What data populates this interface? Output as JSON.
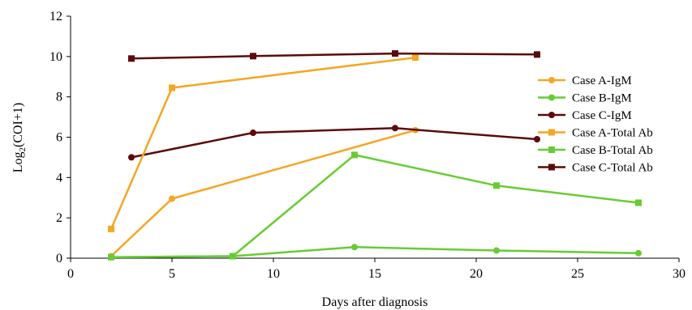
{
  "chart_data": {
    "type": "line",
    "title": "",
    "xlabel": "Days after diagnosis",
    "ylabel_main": "Log",
    "ylabel_sub": "2",
    "ylabel_rest": "(COI+1)",
    "xlim": [
      0,
      30
    ],
    "ylim": [
      0,
      12
    ],
    "xticks": [
      "0",
      "5",
      "10",
      "15",
      "20",
      "25",
      "30"
    ],
    "yticks": [
      "0",
      "2",
      "4",
      "6",
      "8",
      "10",
      "12"
    ],
    "grid": false,
    "legend_position": "right",
    "series": [
      {
        "name": "Case A-IgM",
        "color": "#F5A623",
        "marker": "circle",
        "points": [
          [
            2,
            0.1
          ],
          [
            5,
            2.95
          ],
          [
            17,
            6.35
          ]
        ]
      },
      {
        "name": "Case B-IgM",
        "color": "#66CC33",
        "marker": "circle",
        "points": [
          [
            2,
            0.05
          ],
          [
            8,
            0.1
          ],
          [
            14,
            0.55
          ],
          [
            21,
            0.38
          ],
          [
            28,
            0.25
          ]
        ]
      },
      {
        "name": "Case C-IgM",
        "color": "#5C0A0A",
        "marker": "circle",
        "points": [
          [
            3,
            5.0
          ],
          [
            9,
            6.22
          ],
          [
            16,
            6.45
          ],
          [
            23,
            5.9
          ]
        ]
      },
      {
        "name": "Case A-Total Ab",
        "color": "#F5A623",
        "marker": "square",
        "points": [
          [
            2,
            1.45
          ],
          [
            5,
            8.45
          ],
          [
            17,
            9.95
          ]
        ]
      },
      {
        "name": "Case B-Total Ab",
        "color": "#66CC33",
        "marker": "square",
        "points": [
          [
            2,
            0.05
          ],
          [
            8,
            0.1
          ],
          [
            14,
            5.12
          ],
          [
            21,
            3.6
          ],
          [
            28,
            2.75
          ]
        ]
      },
      {
        "name": "Case C-Total Ab",
        "color": "#5C0A0A",
        "marker": "square",
        "points": [
          [
            3,
            9.9
          ],
          [
            9,
            10.02
          ],
          [
            16,
            10.15
          ],
          [
            23,
            10.1
          ]
        ]
      }
    ]
  }
}
